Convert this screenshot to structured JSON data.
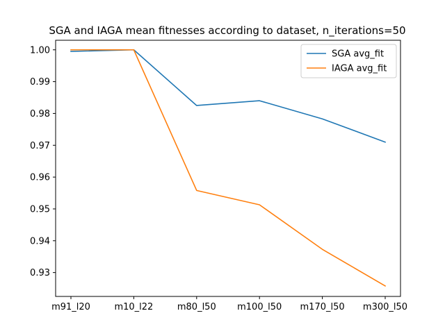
{
  "chart_data": {
    "type": "line",
    "title": "SGA and IAGA mean fitnesses according to dataset, n_iterations=50",
    "xlabel": "",
    "ylabel": "",
    "categories": [
      "m91_l20",
      "m10_l22",
      "m80_l50",
      "m100_l50",
      "m170_l50",
      "m300_l50"
    ],
    "series": [
      {
        "name": "SGA avg_fit",
        "color": "#1f77b4",
        "values": [
          0.9995,
          1.0,
          0.9825,
          0.984,
          0.9783,
          0.971
        ]
      },
      {
        "name": "IAGA avg_fit",
        "color": "#ff7f0e",
        "values": [
          1.0,
          1.0,
          0.9558,
          0.9513,
          0.9373,
          0.9258
        ]
      }
    ],
    "ylim": [
      0.9225,
      1.003
    ],
    "yticks": [
      0.93,
      0.94,
      0.95,
      0.96,
      0.97,
      0.98,
      0.99,
      1.0
    ],
    "ytick_labels": [
      "0.93",
      "0.94",
      "0.95",
      "0.96",
      "0.97",
      "0.98",
      "0.99",
      "1.00"
    ],
    "grid": false,
    "legend_position": "top-right"
  }
}
